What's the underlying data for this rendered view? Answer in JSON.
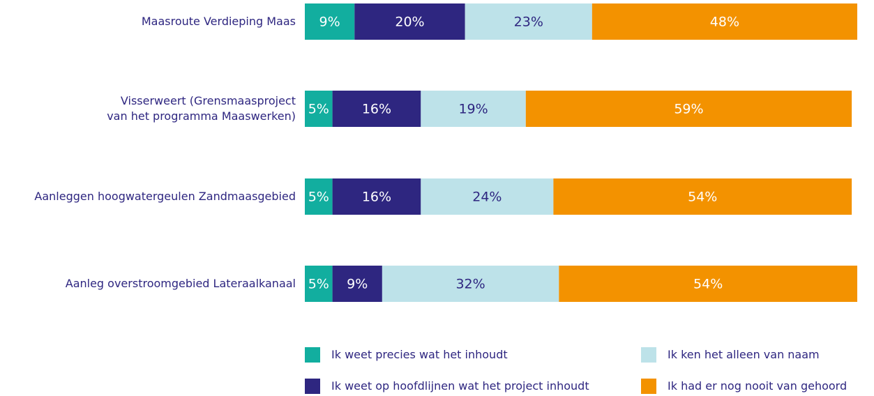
{
  "chart_data": {
    "type": "stacked-bar-horizontal",
    "categories": [
      "Maasroute Verdieping Maas",
      "Visserweert (Grensmaasproject van het programma Maaswerken)",
      "Aanleggen hoogwatergeulen Zandmaasgebied",
      "Aanleg overstroomgebied Lateraalkanaal"
    ],
    "xlim": [
      0,
      100
    ],
    "series": [
      {
        "name": "Ik weet precies wat het inhoudt",
        "color": "#12ae9f",
        "label_color": "#ffffff",
        "values": [
          9,
          5,
          5,
          5
        ],
        "value_labels": [
          "9%",
          "5%",
          "5%",
          "5%"
        ]
      },
      {
        "name": "Ik weet op hoofdlijnen wat het project inhoudt",
        "color": "#2e2680",
        "label_color": "#ffffff",
        "values": [
          20,
          16,
          16,
          9
        ],
        "value_labels": [
          "20%",
          "16%",
          "16%",
          "9%"
        ]
      },
      {
        "name": "Ik ken het alleen van naam",
        "color": "#bde2e9",
        "label_color": "#2e2680",
        "values": [
          23,
          19,
          24,
          32
        ],
        "value_labels": [
          "23%",
          "19%",
          "24%",
          "32%"
        ]
      },
      {
        "name": "Ik had er nog nooit van gehoord",
        "color": "#f39200",
        "label_color": "#ffffff",
        "values": [
          48,
          59,
          54,
          54
        ],
        "value_labels": [
          "48%",
          "59%",
          "54%",
          "54%"
        ]
      }
    ]
  }
}
